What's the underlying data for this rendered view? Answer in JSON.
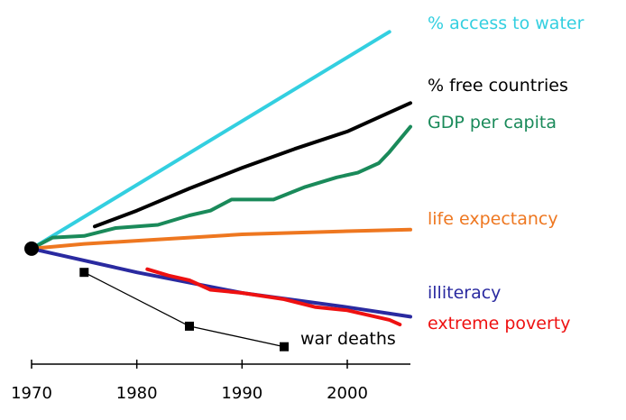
{
  "chart_data": {
    "type": "line",
    "title": "",
    "xlabel": "",
    "ylabel": "",
    "xlim": [
      1970,
      2006
    ],
    "ylim": [
      -65,
      140
    ],
    "grid": false,
    "x_ticks": [
      "1970",
      "1980",
      "1990",
      "2000"
    ],
    "origin": {
      "x": 1970,
      "y": 0
    },
    "series": [
      {
        "name": "% access to water",
        "color": "#33cfe0",
        "points": [
          [
            1970,
            0
          ],
          [
            2004,
            137
          ]
        ]
      },
      {
        "name": "% free countries",
        "color": "#000000",
        "points": [
          [
            1976,
            14
          ],
          [
            1980,
            24
          ],
          [
            1985,
            38
          ],
          [
            1990,
            51
          ],
          [
            1995,
            63
          ],
          [
            2000,
            74
          ],
          [
            2006,
            92
          ]
        ]
      },
      {
        "name": "GDP per capita",
        "color": "#1a8a5a",
        "points": [
          [
            1970,
            0
          ],
          [
            1972,
            7
          ],
          [
            1975,
            8
          ],
          [
            1978,
            13
          ],
          [
            1982,
            15
          ],
          [
            1985,
            21
          ],
          [
            1987,
            24
          ],
          [
            1989,
            31
          ],
          [
            1993,
            31
          ],
          [
            1996,
            39
          ],
          [
            1999,
            45
          ],
          [
            2001,
            48
          ],
          [
            2003,
            54
          ],
          [
            2004,
            61
          ],
          [
            2006,
            77
          ]
        ]
      },
      {
        "name": "life expectancy",
        "color": "#ee7720",
        "points": [
          [
            1970,
            0
          ],
          [
            1975,
            3
          ],
          [
            1980,
            5
          ],
          [
            1985,
            7
          ],
          [
            1990,
            9
          ],
          [
            1995,
            10
          ],
          [
            2000,
            11
          ],
          [
            2006,
            12
          ]
        ]
      },
      {
        "name": "illiteracy",
        "color": "#2a2aa0",
        "points": [
          [
            1970,
            0
          ],
          [
            1980,
            -15
          ],
          [
            1990,
            -28
          ],
          [
            2000,
            -37
          ],
          [
            2006,
            -43
          ]
        ]
      },
      {
        "name": "extreme poverty",
        "color": "#ee1111",
        "points": [
          [
            1981,
            -13
          ],
          [
            1983,
            -17
          ],
          [
            1985,
            -20
          ],
          [
            1987,
            -26
          ],
          [
            1990,
            -28
          ],
          [
            1994,
            -32
          ],
          [
            1997,
            -37
          ],
          [
            2000,
            -39
          ],
          [
            2004,
            -45
          ],
          [
            2005,
            -48
          ]
        ]
      },
      {
        "name": "war deaths",
        "color": "#000000",
        "markers": true,
        "points": [
          [
            1975,
            -15
          ],
          [
            1985,
            -49
          ],
          [
            1994,
            -62
          ]
        ]
      }
    ]
  }
}
